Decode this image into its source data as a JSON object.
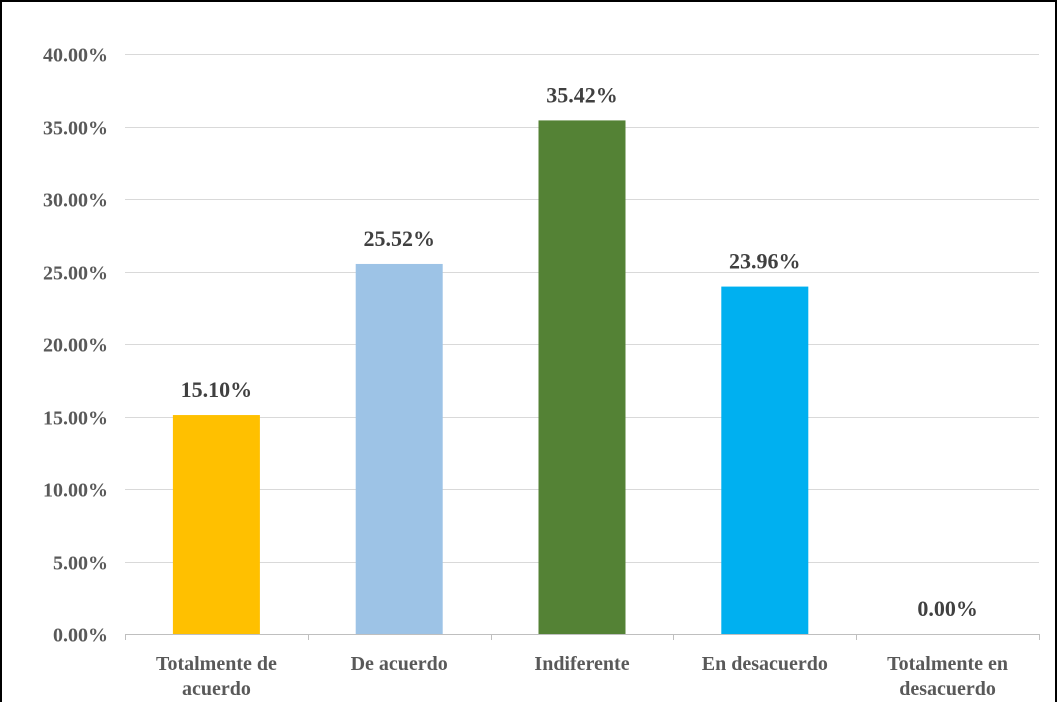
{
  "chart_data": {
    "type": "bar",
    "title": "",
    "xlabel": "",
    "ylabel": "",
    "ylim": [
      0,
      40
    ],
    "y_ticks": [
      0,
      5,
      10,
      15,
      20,
      25,
      30,
      35,
      40
    ],
    "y_tick_labels": [
      "0.00%",
      "5.00%",
      "10.00%",
      "15.00%",
      "20.00%",
      "25.00%",
      "30.00%",
      "35.00%",
      "40.00%"
    ],
    "grid": true,
    "legend": "none",
    "categories": [
      [
        "Totalmente de",
        "acuerdo"
      ],
      [
        "De acuerdo"
      ],
      [
        "Indiferente"
      ],
      [
        "En desacuerdo"
      ],
      [
        "Totalmente en",
        "desacuerdo"
      ]
    ],
    "values": [
      15.1,
      25.52,
      35.42,
      23.96,
      0.0
    ],
    "data_labels": [
      "15.10%",
      "25.52%",
      "35.42%",
      "23.96%",
      "0.00%"
    ],
    "colors": [
      "#ffc000",
      "#9dc3e6",
      "#548235",
      "#00b0f0",
      "#a5a5a5"
    ]
  }
}
